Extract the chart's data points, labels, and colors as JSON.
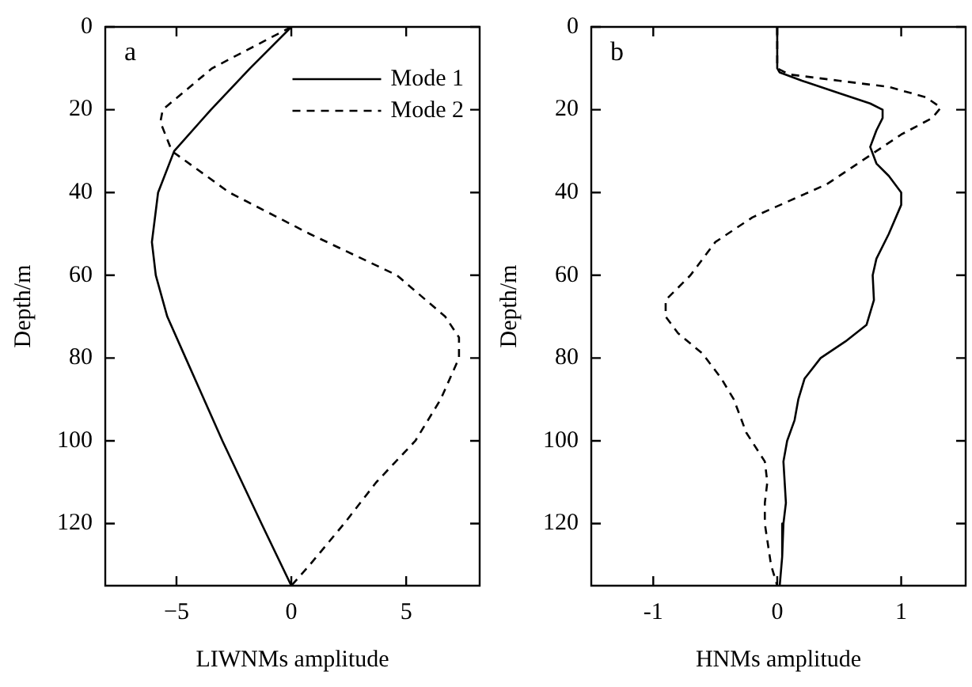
{
  "chart_data": [
    {
      "type": "line",
      "xlabel": "LIWNMs amplitude",
      "ylabel": "Depth/m",
      "annotations": [
        "a"
      ],
      "xlim": [
        -8.1,
        8.2
      ],
      "xticks": [
        {
          "value": -5,
          "label": "−5"
        },
        0,
        5
      ],
      "ylim": [
        135,
        0
      ],
      "yticks": [
        0,
        20,
        40,
        60,
        80,
        100,
        120
      ],
      "grid": false,
      "legend": "top right",
      "marker": "none",
      "series": [
        {
          "name": "Mode 1",
          "color": "#000000",
          "line_style": "solid",
          "x": [
            0,
            -1.8,
            -3.5,
            -5.1,
            -5.8,
            -6.07,
            -5.9,
            -5.4,
            -4.6,
            -3.0,
            -1.3,
            0
          ],
          "values": [
            0,
            10,
            20,
            30,
            40,
            52,
            60,
            70,
            80,
            100,
            120,
            135
          ]
        },
        {
          "name": "Mode 2",
          "color": "#000000",
          "line_style": "dashed",
          "x": [
            0,
            -3.45,
            -5.6,
            -5.7,
            -5.2,
            -2.7,
            -0.6,
            0.8,
            4.6,
            6.7,
            7.3,
            7.3,
            6.5,
            5.4,
            3.7,
            2.3,
            0.8,
            0
          ],
          "values": [
            0,
            10,
            20,
            23,
            30,
            40,
            46,
            50,
            60,
            70,
            75,
            80,
            90,
            100,
            110,
            120,
            130,
            135
          ]
        }
      ]
    },
    {
      "type": "line",
      "xlabel": "HNMs amplitude",
      "ylabel": "Depth/m",
      "annotations": [
        "b"
      ],
      "xlim": [
        -1.5,
        1.52
      ],
      "xticks": [
        -1,
        0,
        1
      ],
      "ylim": [
        135,
        0
      ],
      "yticks": [
        0,
        20,
        40,
        60,
        80,
        100,
        120
      ],
      "grid": false,
      "marker": "none",
      "series": [
        {
          "color": "#000000",
          "line_style": "solid",
          "x": [
            0,
            0,
            0.02,
            0.2,
            0.5,
            0.75,
            0.85,
            0.85,
            0.8,
            0.75,
            0.8,
            0.9,
            1.0,
            1.0,
            0.9,
            0.8,
            0.77,
            0.78,
            0.72,
            0.55,
            0.35,
            0.22,
            0.17,
            0.14,
            0.08,
            0.05,
            0.06,
            0.07,
            0.05,
            0.04,
            0.02
          ],
          "values": [
            0,
            10,
            11,
            13,
            16,
            18.5,
            20,
            22,
            25,
            29,
            33,
            36,
            40,
            43,
            50,
            56,
            60,
            66,
            72,
            76,
            80,
            85,
            90,
            95,
            100,
            105,
            110,
            115,
            120,
            128,
            135
          ]
        },
        {
          "color": "#000000",
          "line_style": "dashed",
          "x": [
            0,
            0,
            0.1,
            0.5,
            0.9,
            1.2,
            1.32,
            1.25,
            1.0,
            0.8,
            0.6,
            0.4,
            0.1,
            -0.2,
            -0.5,
            -0.7,
            -0.9,
            -0.9,
            -0.8,
            -0.6,
            -0.45,
            -0.35,
            -0.25,
            -0.1,
            -0.08,
            -0.1,
            -0.1,
            -0.05,
            0
          ],
          "values": [
            0,
            10,
            11.5,
            13,
            14.5,
            17,
            19.5,
            22,
            26,
            30,
            34,
            38,
            42,
            46,
            52,
            60,
            66,
            70,
            74,
            79,
            85,
            90,
            98,
            105,
            110,
            115,
            120,
            130,
            135
          ]
        }
      ]
    }
  ]
}
